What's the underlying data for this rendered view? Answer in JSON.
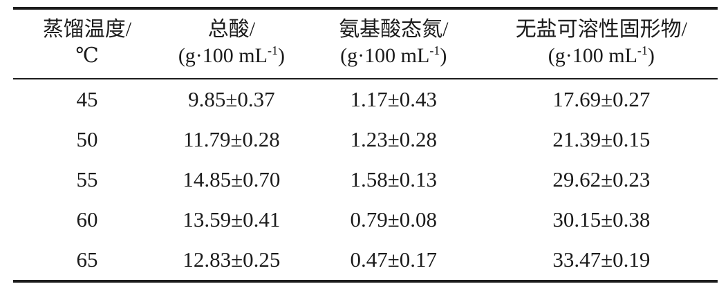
{
  "table": {
    "columns": [
      {
        "line1": "蒸馏温度/",
        "line2": "℃"
      },
      {
        "line1": "总酸/",
        "line2_pre": "(g·100 mL",
        "line2_sup": "-1",
        "line2_post": ")"
      },
      {
        "line1": "氨基酸态氮/",
        "line2_pre": "(g·100 mL",
        "line2_sup": "-1",
        "line2_post": ")"
      },
      {
        "line1": "无盐可溶性固形物/",
        "line2_pre": "(g·100 mL",
        "line2_sup": "-1",
        "line2_post": ")"
      }
    ],
    "rows": [
      [
        "45",
        "9.85±0.37",
        "1.17±0.43",
        "17.69±0.27"
      ],
      [
        "50",
        "11.79±0.28",
        "1.23±0.28",
        "21.39±0.15"
      ],
      [
        "55",
        "14.85±0.70",
        "1.58±0.13",
        "29.62±0.23"
      ],
      [
        "60",
        "13.59±0.41",
        "0.79±0.08",
        "30.15±0.38"
      ],
      [
        "65",
        "12.83±0.25",
        "0.47±0.17",
        "33.47±0.19"
      ]
    ],
    "rule_color": "#1c1c1c",
    "text_color": "#1b1b1b",
    "background_color": "#ffffff"
  },
  "chart_data": {
    "type": "table",
    "title": "",
    "categories": [
      "蒸馏温度/℃",
      "总酸/(g·100 mL-1)",
      "氨基酸态氮/(g·100 mL-1)",
      "无盐可溶性固形物/(g·100 mL-1)"
    ],
    "series": [
      {
        "name": "蒸馏温度/℃",
        "values": [
          45,
          50,
          55,
          60,
          65
        ]
      },
      {
        "name": "总酸/(g·100 mL-1)",
        "values": [
          9.85,
          11.79,
          14.85,
          13.59,
          12.83
        ],
        "errors": [
          0.37,
          0.28,
          0.7,
          0.41,
          0.25
        ]
      },
      {
        "name": "氨基酸态氮/(g·100 mL-1)",
        "values": [
          1.17,
          1.23,
          1.58,
          0.79,
          0.47
        ],
        "errors": [
          0.43,
          0.28,
          0.13,
          0.08,
          0.17
        ]
      },
      {
        "name": "无盐可溶性固形物/(g·100 mL-1)",
        "values": [
          17.69,
          21.39,
          29.62,
          30.15,
          33.47
        ],
        "errors": [
          0.27,
          0.15,
          0.23,
          0.38,
          0.19
        ]
      }
    ]
  }
}
